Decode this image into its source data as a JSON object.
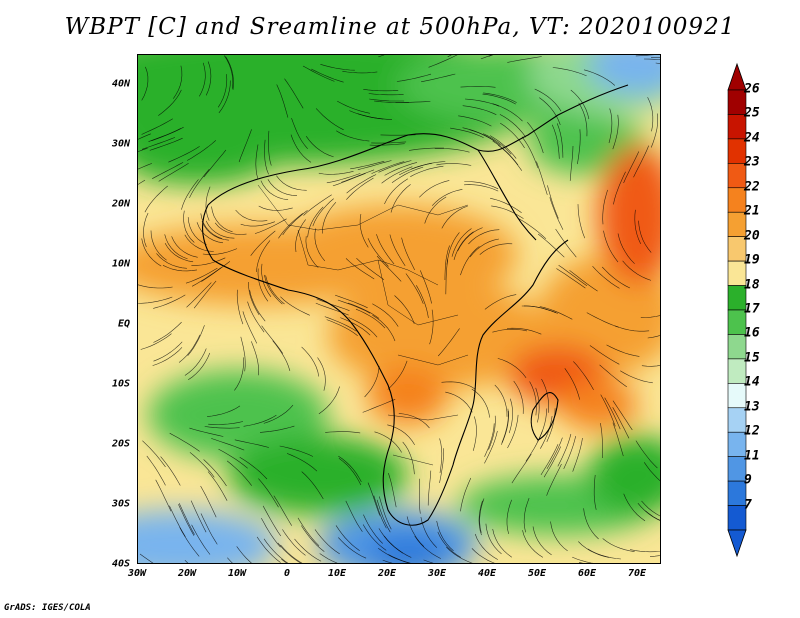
{
  "title": "WBPT [C] and Sreamline at 500hPa, VT: 2020100921",
  "credit": "GrADS: IGES/COLA",
  "map": {
    "latitude_labels": [
      "40N",
      "30N",
      "20N",
      "10N",
      "EQ",
      "10S",
      "20S",
      "30S",
      "40S"
    ],
    "longitude_labels": [
      "30W",
      "20W",
      "10W",
      "0",
      "10E",
      "20E",
      "30E",
      "40E",
      "50E",
      "60E",
      "70E"
    ],
    "lat_range": [
      -40,
      45
    ],
    "lon_range": [
      -30,
      75
    ]
  },
  "colorbar": {
    "labels": [
      "26",
      "25",
      "24",
      "23",
      "22",
      "21",
      "20",
      "19",
      "18",
      "17",
      "16",
      "15",
      "14",
      "13",
      "12",
      "11",
      "9",
      "7"
    ],
    "colors": [
      "#a00000",
      "#c81400",
      "#e13200",
      "#f05a14",
      "#f5821e",
      "#f5a032",
      "#f8c86e",
      "#fae696",
      "#2bb02b",
      "#4dc24d",
      "#8ed88e",
      "#c0ebc0",
      "#e6fafa",
      "#a6d2f4",
      "#78b4ee",
      "#5096e4",
      "#2c78dc",
      "#145ad2"
    ]
  }
}
